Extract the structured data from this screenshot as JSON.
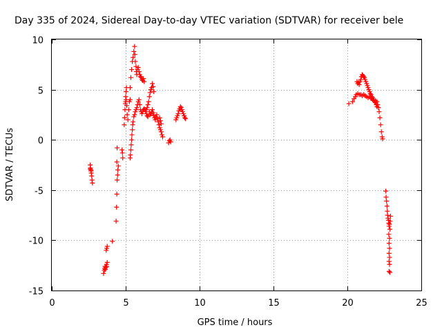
{
  "chart_data": {
    "type": "scatter",
    "title": "Day 335 of 2024, Sidereal Day-to-day VTEC variation (SDTVAR) for receiver bele",
    "xlabel": "GPS time / hours",
    "ylabel": "SDTVAR / TECUs",
    "xlim": [
      0,
      25
    ],
    "ylim": [
      -15,
      10
    ],
    "xticks": [
      0,
      5,
      10,
      15,
      20,
      25
    ],
    "yticks": [
      -15,
      -10,
      -5,
      0,
      5,
      10
    ],
    "grid": true,
    "marker": "+",
    "color": "#ff0000",
    "series": [
      {
        "name": "SDTVAR",
        "points": [
          [
            2.6,
            -2.5
          ],
          [
            2.62,
            -2.8
          ],
          [
            2.65,
            -3.0
          ],
          [
            2.67,
            -3.3
          ],
          [
            2.7,
            -3.6
          ],
          [
            2.72,
            -4.0
          ],
          [
            2.75,
            -4.3
          ],
          [
            2.6,
            -2.9
          ],
          [
            2.65,
            -3.1
          ],
          [
            3.5,
            -13.3
          ],
          [
            3.55,
            -13.0
          ],
          [
            3.58,
            -12.8
          ],
          [
            3.6,
            -12.6
          ],
          [
            3.62,
            -12.9
          ],
          [
            3.65,
            -12.7
          ],
          [
            3.7,
            -12.4
          ],
          [
            3.72,
            -12.6
          ],
          [
            3.75,
            -12.2
          ],
          [
            3.68,
            -11.0
          ],
          [
            3.72,
            -10.8
          ],
          [
            3.75,
            -10.6
          ],
          [
            4.1,
            -10.1
          ],
          [
            4.35,
            -8.1
          ],
          [
            4.38,
            -6.7
          ],
          [
            4.4,
            -5.4
          ],
          [
            4.42,
            -4.0
          ],
          [
            4.45,
            -3.5
          ],
          [
            4.47,
            -3.0
          ],
          [
            4.5,
            -2.6
          ],
          [
            4.4,
            -2.2
          ],
          [
            4.42,
            -0.8
          ],
          [
            4.75,
            -1.0
          ],
          [
            4.78,
            -1.3
          ],
          [
            4.8,
            -1.8
          ],
          [
            4.9,
            1.5
          ],
          [
            4.92,
            2.2
          ],
          [
            4.95,
            3.0
          ],
          [
            4.97,
            3.6
          ],
          [
            5.0,
            4.3
          ],
          [
            5.02,
            4.8
          ],
          [
            5.05,
            5.2
          ],
          [
            5.0,
            3.8
          ],
          [
            5.03,
            4.0
          ],
          [
            5.07,
            3.4
          ],
          [
            5.1,
            2.5
          ],
          [
            5.15,
            2.0
          ],
          [
            5.2,
            3.0
          ],
          [
            5.25,
            3.8
          ],
          [
            5.3,
            4.0
          ],
          [
            5.3,
            -1.8
          ],
          [
            5.32,
            -1.5
          ],
          [
            5.35,
            -1.0
          ],
          [
            5.37,
            -0.5
          ],
          [
            5.4,
            0.0
          ],
          [
            5.42,
            0.5
          ],
          [
            5.45,
            1.0
          ],
          [
            5.47,
            1.5
          ],
          [
            5.5,
            1.8
          ],
          [
            5.3,
            5.2
          ],
          [
            5.35,
            6.2
          ],
          [
            5.4,
            7.0
          ],
          [
            5.45,
            7.8
          ],
          [
            5.5,
            8.2
          ],
          [
            5.55,
            8.8
          ],
          [
            5.6,
            9.3
          ],
          [
            5.62,
            8.5
          ],
          [
            5.65,
            7.8
          ],
          [
            5.7,
            7.3
          ],
          [
            5.72,
            6.8
          ],
          [
            5.75,
            6.5
          ],
          [
            5.8,
            7.0
          ],
          [
            5.85,
            7.2
          ],
          [
            5.9,
            6.8
          ],
          [
            5.95,
            6.5
          ],
          [
            6.0,
            6.3
          ],
          [
            6.05,
            6.2
          ],
          [
            6.1,
            6.0
          ],
          [
            6.15,
            5.9
          ],
          [
            6.2,
            6.1
          ],
          [
            6.25,
            5.8
          ],
          [
            5.55,
            2.3
          ],
          [
            5.6,
            2.5
          ],
          [
            5.65,
            2.8
          ],
          [
            5.7,
            3.0
          ],
          [
            5.75,
            3.2
          ],
          [
            5.8,
            3.5
          ],
          [
            5.85,
            3.8
          ],
          [
            5.9,
            4.0
          ],
          [
            5.95,
            3.5
          ],
          [
            6.0,
            3.0
          ],
          [
            6.05,
            2.8
          ],
          [
            6.1,
            2.6
          ],
          [
            6.15,
            2.8
          ],
          [
            6.2,
            3.0
          ],
          [
            6.25,
            3.1
          ],
          [
            6.3,
            3.0
          ],
          [
            6.35,
            2.8
          ],
          [
            6.4,
            2.6
          ],
          [
            6.45,
            2.4
          ],
          [
            6.5,
            2.3
          ],
          [
            6.4,
            3.0
          ],
          [
            6.45,
            3.2
          ],
          [
            6.5,
            3.5
          ],
          [
            6.55,
            3.8
          ],
          [
            6.6,
            4.3
          ],
          [
            6.65,
            4.7
          ],
          [
            6.7,
            5.0
          ],
          [
            6.75,
            5.2
          ],
          [
            6.8,
            5.6
          ],
          [
            6.85,
            5.3
          ],
          [
            6.9,
            4.8
          ],
          [
            6.6,
            2.8
          ],
          [
            6.65,
            2.5
          ],
          [
            6.7,
            2.6
          ],
          [
            6.75,
            2.8
          ],
          [
            6.8,
            3.0
          ],
          [
            6.85,
            2.7
          ],
          [
            6.9,
            2.4
          ],
          [
            6.95,
            2.2
          ],
          [
            7.0,
            2.0
          ],
          [
            7.05,
            2.3
          ],
          [
            7.1,
            2.5
          ],
          [
            7.15,
            2.1
          ],
          [
            7.2,
            1.8
          ],
          [
            7.25,
            1.5
          ],
          [
            7.3,
            1.2
          ],
          [
            7.35,
            1.0
          ],
          [
            7.4,
            0.8
          ],
          [
            7.45,
            0.5
          ],
          [
            7.5,
            0.3
          ],
          [
            7.3,
            2.2
          ],
          [
            7.35,
            1.9
          ],
          [
            7.4,
            1.6
          ],
          [
            7.9,
            -0.3
          ],
          [
            7.95,
            -0.1
          ],
          [
            8.0,
            0.0
          ],
          [
            8.05,
            -0.2
          ],
          [
            8.4,
            2.0
          ],
          [
            8.45,
            2.2
          ],
          [
            8.5,
            2.4
          ],
          [
            8.55,
            2.6
          ],
          [
            8.6,
            2.9
          ],
          [
            8.65,
            3.1
          ],
          [
            8.7,
            3.3
          ],
          [
            8.75,
            3.2
          ],
          [
            8.8,
            3.0
          ],
          [
            8.85,
            2.8
          ],
          [
            8.9,
            2.6
          ],
          [
            8.95,
            2.4
          ],
          [
            9.0,
            2.2
          ],
          [
            9.05,
            2.1
          ],
          [
            20.1,
            3.6
          ],
          [
            20.35,
            3.8
          ],
          [
            20.45,
            4.1
          ],
          [
            20.55,
            4.3
          ],
          [
            20.6,
            4.5
          ],
          [
            20.7,
            4.6
          ],
          [
            20.8,
            4.5
          ],
          [
            20.9,
            4.5
          ],
          [
            21.0,
            4.4
          ],
          [
            21.1,
            4.5
          ],
          [
            21.2,
            4.4
          ],
          [
            21.3,
            4.3
          ],
          [
            21.4,
            4.2
          ],
          [
            21.5,
            4.3
          ],
          [
            21.6,
            4.1
          ],
          [
            21.7,
            4.0
          ],
          [
            21.8,
            4.0
          ],
          [
            21.9,
            3.9
          ],
          [
            22.0,
            3.8
          ],
          [
            22.05,
            3.5
          ],
          [
            22.1,
            3.2
          ],
          [
            22.15,
            2.8
          ],
          [
            22.2,
            2.2
          ],
          [
            22.25,
            1.5
          ],
          [
            22.3,
            0.8
          ],
          [
            22.35,
            0.3
          ],
          [
            22.38,
            0.1
          ],
          [
            20.65,
            5.8
          ],
          [
            20.7,
            5.6
          ],
          [
            20.75,
            5.7
          ],
          [
            20.8,
            5.5
          ],
          [
            20.85,
            5.8
          ],
          [
            20.9,
            6.0
          ],
          [
            20.95,
            6.3
          ],
          [
            21.0,
            6.5
          ],
          [
            21.05,
            6.4
          ],
          [
            21.1,
            6.3
          ],
          [
            21.15,
            6.2
          ],
          [
            21.2,
            6.0
          ],
          [
            21.25,
            5.8
          ],
          [
            21.3,
            5.6
          ],
          [
            21.35,
            5.4
          ],
          [
            21.4,
            5.2
          ],
          [
            21.45,
            5.0
          ],
          [
            21.5,
            4.8
          ],
          [
            21.55,
            4.6
          ],
          [
            21.6,
            4.5
          ],
          [
            21.65,
            4.3
          ],
          [
            21.7,
            4.2
          ],
          [
            21.75,
            4.0
          ],
          [
            21.8,
            3.9
          ],
          [
            21.85,
            3.8
          ],
          [
            21.9,
            3.7
          ],
          [
            21.95,
            3.5
          ],
          [
            22.0,
            3.3
          ],
          [
            22.6,
            -5.1
          ],
          [
            22.62,
            -5.7
          ],
          [
            22.65,
            -6.1
          ],
          [
            22.68,
            -6.6
          ],
          [
            22.7,
            -7.1
          ],
          [
            22.72,
            -7.5
          ],
          [
            22.75,
            -7.8
          ],
          [
            22.78,
            -8.0
          ],
          [
            22.8,
            -8.3
          ],
          [
            22.82,
            -8.6
          ],
          [
            22.85,
            -8.4
          ],
          [
            22.88,
            -8.9
          ],
          [
            22.8,
            -9.4
          ],
          [
            22.85,
            -9.8
          ],
          [
            22.82,
            -10.3
          ],
          [
            22.85,
            -10.8
          ],
          [
            22.82,
            -11.3
          ],
          [
            22.85,
            -11.7
          ],
          [
            22.82,
            -12.1
          ],
          [
            22.85,
            -12.4
          ],
          [
            22.82,
            -13.1
          ],
          [
            22.88,
            -13.2
          ],
          [
            22.9,
            -8.1
          ],
          [
            22.92,
            -7.6
          ]
        ]
      }
    ]
  }
}
